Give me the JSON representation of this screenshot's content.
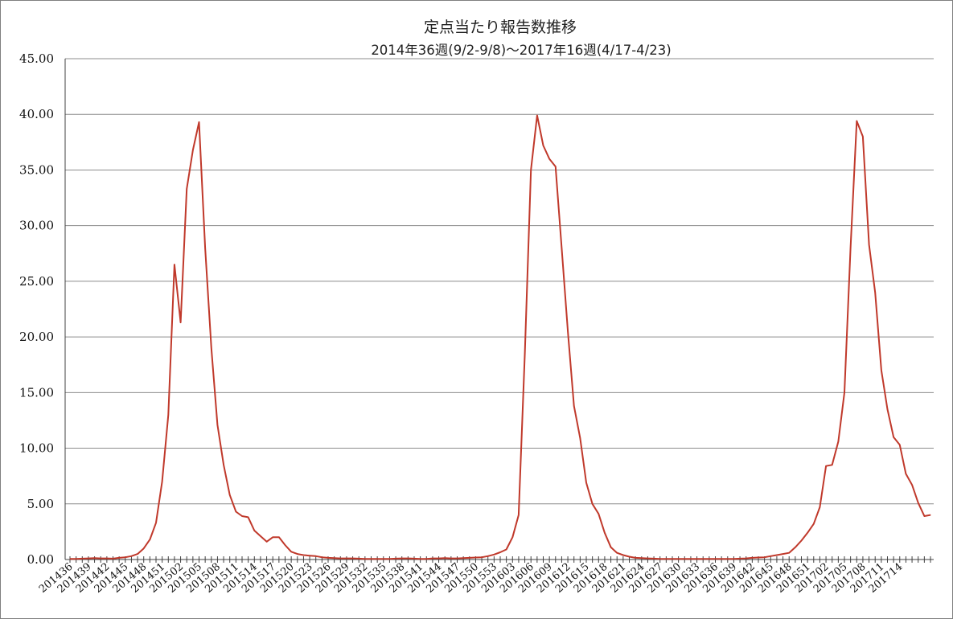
{
  "chart_data": {
    "type": "line",
    "title": "定点当たり報告数推移",
    "subtitle": "2014年36週(9/2-9/8)～2017年16週(4/17-4/23)",
    "xlabel": "",
    "ylabel": "",
    "ylim": [
      0,
      45
    ],
    "yticks": [
      "0.00",
      "5.00",
      "10.00",
      "15.00",
      "20.00",
      "25.00",
      "30.00",
      "35.00",
      "40.00",
      "45.00"
    ],
    "grid": true,
    "legend": "none",
    "line_color": "#c0392b",
    "x_tick_labels": [
      "201436",
      "201439",
      "201442",
      "201445",
      "201448",
      "201451",
      "201502",
      "201505",
      "201508",
      "201511",
      "201514",
      "201517",
      "201520",
      "201523",
      "201526",
      "201529",
      "201532",
      "201535",
      "201538",
      "201541",
      "201544",
      "201547",
      "201550",
      "201553",
      "201603",
      "201606",
      "201609",
      "201612",
      "201615",
      "201618",
      "201621",
      "201624",
      "201627",
      "201630",
      "201633",
      "201636",
      "201639",
      "201642",
      "201645",
      "201648",
      "201651",
      "201702",
      "201705",
      "201708",
      "201711",
      "201714"
    ],
    "series": [
      {
        "values": [
          0.05,
          0.05,
          0.08,
          0.1,
          0.12,
          0.1,
          0.1,
          0.08,
          0.15,
          0.2,
          0.3,
          0.5,
          1.0,
          1.8,
          3.3,
          7.0,
          13.0,
          26.5,
          21.3,
          33.3,
          36.8,
          39.3,
          28.0,
          19.0,
          12.1,
          8.5,
          5.8,
          4.3,
          3.9,
          3.8,
          2.6,
          2.1,
          1.6,
          2.0,
          2.0,
          1.3,
          0.7,
          0.5,
          0.4,
          0.35,
          0.3,
          0.2,
          0.15,
          0.12,
          0.1,
          0.1,
          0.1,
          0.08,
          0.06,
          0.05,
          0.05,
          0.05,
          0.05,
          0.08,
          0.1,
          0.1,
          0.08,
          0.05,
          0.05,
          0.1,
          0.1,
          0.12,
          0.1,
          0.1,
          0.12,
          0.15,
          0.18,
          0.2,
          0.3,
          0.45,
          0.65,
          0.9,
          2.0,
          4.0,
          18.5,
          35.0,
          39.9,
          37.2,
          36.0,
          35.3,
          28.0,
          20.5,
          13.8,
          10.9,
          6.9,
          5.0,
          4.1,
          2.4,
          1.1,
          0.6,
          0.4,
          0.25,
          0.15,
          0.12,
          0.1,
          0.08,
          0.06,
          0.05,
          0.05,
          0.05,
          0.05,
          0.05,
          0.05,
          0.05,
          0.05,
          0.05,
          0.05,
          0.05,
          0.06,
          0.08,
          0.1,
          0.15,
          0.18,
          0.2,
          0.3,
          0.4,
          0.5,
          0.6,
          1.1,
          1.7,
          2.4,
          3.2,
          4.7,
          8.4,
          8.5,
          10.6,
          15.0,
          28.0,
          39.4,
          38.0,
          28.3,
          24.0,
          17.0,
          13.5,
          11.0,
          10.3,
          7.7,
          6.7,
          5.1,
          3.9,
          4.0
        ]
      }
    ]
  }
}
